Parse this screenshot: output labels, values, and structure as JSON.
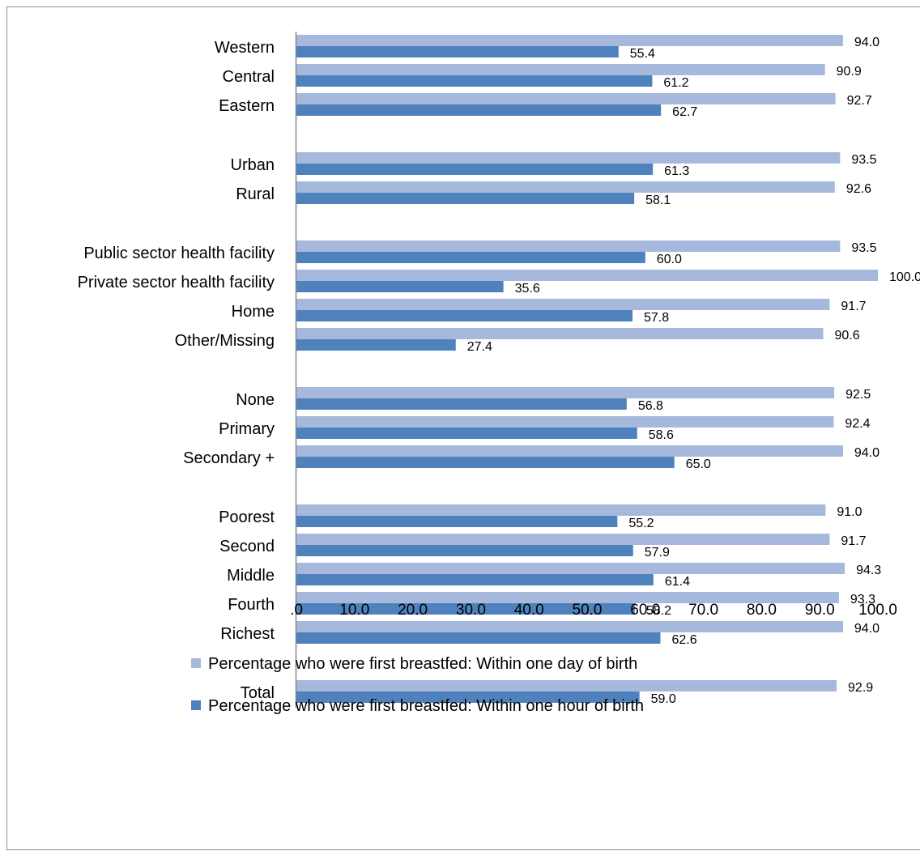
{
  "chart_data": {
    "type": "bar",
    "orientation": "horizontal",
    "categories": [
      "Western",
      "Central",
      "Eastern",
      "Urban",
      "Rural",
      "Public sector health facility",
      "Private sector health facility",
      "Home",
      "Other/Missing",
      "None",
      "Primary",
      "Secondary +",
      "Poorest",
      "Second",
      "Middle",
      "Fourth",
      "Richest",
      "Total"
    ],
    "groups": [
      3,
      2,
      4,
      3,
      5,
      1
    ],
    "series": [
      {
        "name": "Percentage who were first breastfed:  Within one day of birth",
        "color": "#a6b9dc",
        "values": [
          94.0,
          90.9,
          92.7,
          93.5,
          92.6,
          93.5,
          100.0,
          91.7,
          90.6,
          92.5,
          92.4,
          94.0,
          91.0,
          91.7,
          94.3,
          93.3,
          94.0,
          92.9
        ],
        "labels": [
          "94.0",
          "90.9",
          "92.7",
          "93.5",
          "92.6",
          "93.5",
          "100.0",
          "91.7",
          "90.6",
          "92.5",
          "92.4",
          "94.0",
          "91.0",
          "91.7",
          "94.3",
          "93.3",
          "94.0",
          "92.9"
        ]
      },
      {
        "name": "Percentage who were first breastfed: Within one hour of birth",
        "color": "#4f81bd",
        "values": [
          55.4,
          61.2,
          62.7,
          61.3,
          58.1,
          60.0,
          35.6,
          57.8,
          27.4,
          56.8,
          58.6,
          65.0,
          55.2,
          57.9,
          61.4,
          58.2,
          62.6,
          59.0
        ],
        "labels": [
          "55.4",
          "61.2",
          "62.7",
          "61.3",
          "58.1",
          "60.0",
          "35.6",
          "57.8",
          "27.4",
          "56.8",
          "58.6",
          "65.0",
          "55.2",
          "57.9",
          "61.4",
          "58.2",
          "62.6",
          "59.0"
        ]
      }
    ],
    "xlim": [
      0,
      100
    ],
    "xticks": [
      ".0",
      "10.0",
      "20.0",
      "30.0",
      "40.0",
      "50.0",
      "60.0",
      "70.0",
      "80.0",
      "90.0",
      "100.0"
    ],
    "grid": false,
    "legend": "bottom",
    "title": "",
    "xlabel": "",
    "ylabel": ""
  }
}
